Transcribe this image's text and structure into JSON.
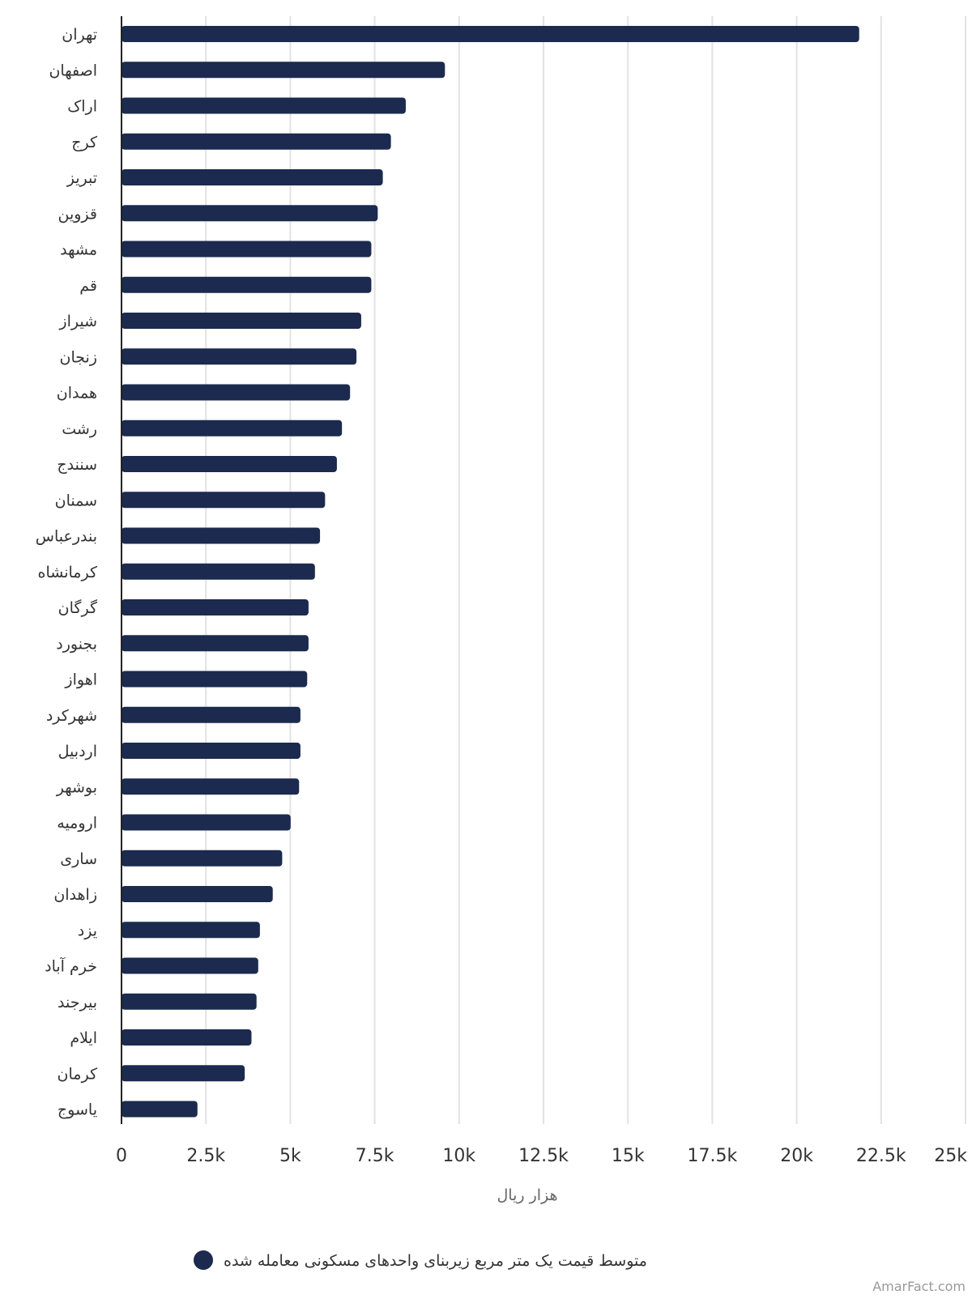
{
  "chart_data": {
    "type": "bar",
    "orientation": "horizontal",
    "categories": [
      "تهران",
      "اصفهان",
      "اراک",
      "کرج",
      "تبریز",
      "قزوین",
      "مشهد",
      "قم",
      "شیراز",
      "زنجان",
      "همدان",
      "رشت",
      "سنندج",
      "سمنان",
      "بندرعباس",
      "کرمانشاه",
      "گرگان",
      "بجنورد",
      "اهواز",
      "شهرکرد",
      "اردبیل",
      "بوشهر",
      "ارومیه",
      "ساری",
      "زاهدان",
      "یزد",
      "خرم آباد",
      "بیرجند",
      "ایلام",
      "کرمان",
      "یاسوج"
    ],
    "series": [
      {
        "name": "متوسط قیمت یک متر مربع زیربنای واحدهای مسکونی معامله شده",
        "values": [
          21850,
          9580,
          8420,
          7980,
          7740,
          7590,
          7400,
          7400,
          7100,
          6960,
          6770,
          6530,
          6380,
          6030,
          5880,
          5730,
          5540,
          5540,
          5500,
          5300,
          5300,
          5260,
          5010,
          4760,
          4480,
          4100,
          4050,
          4000,
          3850,
          3650,
          2250
        ]
      }
    ],
    "xlim": [
      0,
      25000
    ],
    "xticks": [
      0,
      2500,
      5000,
      7500,
      10000,
      12500,
      15000,
      17500,
      20000,
      22500,
      25000
    ],
    "xtick_labels": [
      "0",
      "2.5k",
      "5k",
      "7.5k",
      "10k",
      "12.5k",
      "15k",
      "17.5k",
      "20k",
      "22.5k",
      "25k"
    ],
    "xlabel": "هزار ریال",
    "grid": true,
    "legend_position": "bottom",
    "colors": {
      "bar": "#1b2a4e",
      "grid": "#e2e2e2",
      "axis": "#222222"
    }
  },
  "watermark": "AmarFact.com"
}
